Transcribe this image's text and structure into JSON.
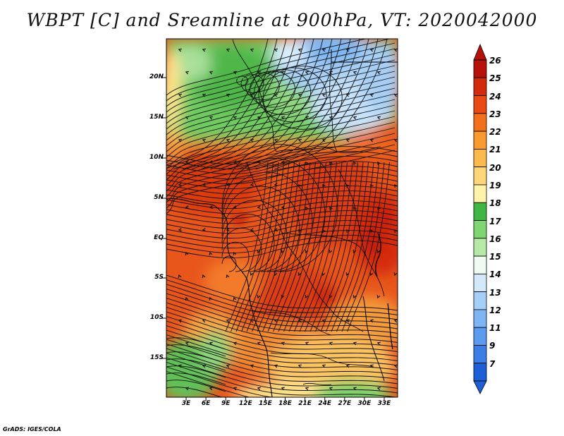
{
  "title": "WBPT [C] and Sreamline at 900hPa, VT: 2020042000",
  "credit": "GrADS: IGES/COLA",
  "lat_labels": [
    "20N",
    "15N",
    "10N",
    "5N",
    "EQ",
    "5S",
    "10S",
    "15S"
  ],
  "lon_labels": [
    "3E",
    "6E",
    "9E",
    "12E",
    "15E",
    "18E",
    "21E",
    "24E",
    "27E",
    "30E",
    "33E"
  ],
  "colorbar": {
    "labels": [
      "7",
      "9",
      "11",
      "12",
      "13",
      "14",
      "15",
      "16",
      "17",
      "18",
      "19",
      "20",
      "21",
      "22",
      "23",
      "24",
      "25",
      "26"
    ],
    "colors": [
      "#1f5fd6",
      "#3b7ee5",
      "#5a9aef",
      "#7eb6f5",
      "#a6cff8",
      "#d2e9fb",
      "#f0faf0",
      "#b6e8a6",
      "#7ed673",
      "#3fb544",
      "#fff3a8",
      "#ffd57a",
      "#fcb94d",
      "#f89a2e",
      "#f2701c",
      "#e84a12",
      "#d42a0c",
      "#b5100a"
    ]
  },
  "wbpt_field_colors": {
    "warm_core": "#e8511a",
    "hot_spot": "#d8320d",
    "desert_green": "#6cc95f",
    "sahara_blue": "#a9d0f5",
    "southern_yellow": "#fdd57a"
  },
  "streamline_color": "#111111"
}
